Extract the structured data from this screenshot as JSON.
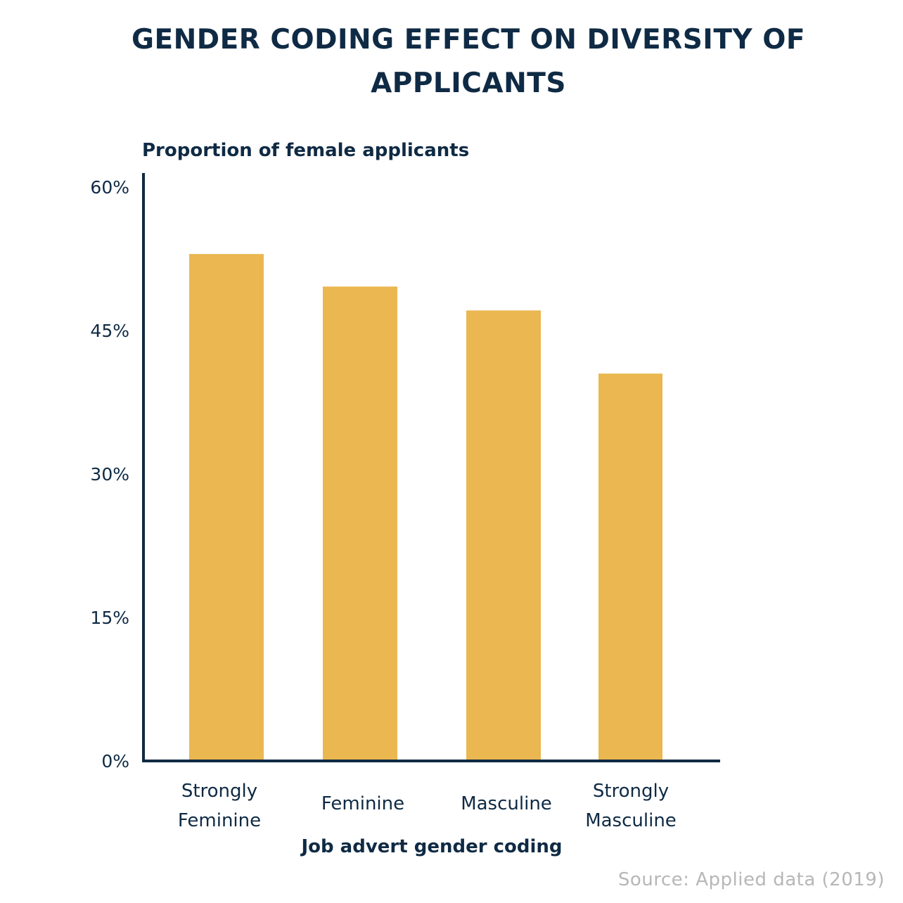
{
  "title_lines": [
    "GENDER CODING EFFECT ON DIVERSITY OF",
    "APPLICANTS"
  ],
  "source": "Source: Applied data (2019)",
  "colors": {
    "bar": "#EAB750",
    "axis": "#0F2A44",
    "text": "#0F2A44",
    "source": "#B7B7B7"
  },
  "chart_data": {
    "type": "bar",
    "title": "GENDER CODING EFFECT ON DIVERSITY OF APPLICANTS",
    "ylabel": "Proportion of female applicants",
    "xlabel": "Job advert gender coding",
    "categories": [
      [
        "Strongly",
        "Feminine"
      ],
      [
        "Feminine"
      ],
      [
        "Masculine"
      ],
      [
        "Strongly",
        "Masculine"
      ]
    ],
    "values": [
      53,
      49.6,
      47.1,
      40.5
    ],
    "ylim": [
      0,
      60
    ],
    "yticks": [
      0,
      15,
      30,
      45,
      60
    ],
    "ytick_labels": [
      "0%",
      "15%",
      "30%",
      "45%",
      "60%"
    ],
    "grid": false
  }
}
